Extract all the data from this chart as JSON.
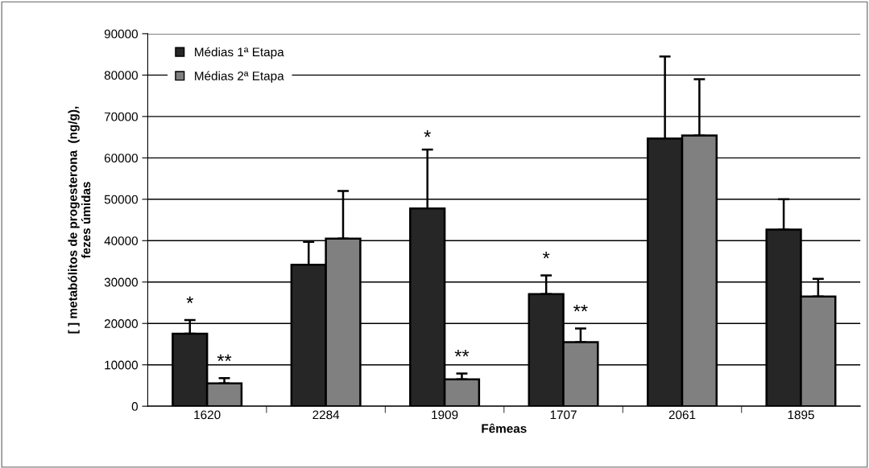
{
  "chart_data": {
    "type": "bar",
    "xlabel": "Fêmeas",
    "ylabel": "[ ] metabólitos de progesterona  (ng/g),\nfezes úmidas",
    "categories": [
      "1620",
      "2284",
      "1909",
      "1707",
      "2061",
      "1895"
    ],
    "series": [
      {
        "name": "Médias 1ª Etapa",
        "color": "#262626",
        "values": [
          17500,
          34200,
          47800,
          27100,
          64700,
          42700
        ],
        "errors": [
          [
            17500,
            20800
          ],
          [
            34200,
            39700
          ],
          [
            47800,
            62000
          ],
          [
            27100,
            31600
          ],
          [
            64700,
            84500
          ],
          [
            42700,
            50000
          ]
        ]
      },
      {
        "name": "Médias 2ª Etapa",
        "color": "#808080",
        "values": [
          5500,
          40500,
          6500,
          15500,
          65400,
          26500
        ],
        "errors": [
          [
            5500,
            6800
          ],
          [
            40500,
            52000
          ],
          [
            6500,
            7900
          ],
          [
            15500,
            18800
          ],
          [
            65400,
            79000
          ],
          [
            26500,
            30800
          ]
        ]
      }
    ],
    "annotations": [
      {
        "text": "*",
        "x": "1620",
        "y": 17500
      },
      {
        "text": "**",
        "x": "1620",
        "y": 5500
      },
      "*",
      {
        "text": "**",
        "x": "1909",
        "y": 6500
      },
      {
        "text": "*",
        "x": "1707",
        "y": 27100
      },
      {
        "text": "**",
        "x": "1707",
        "y": 15500
      }
    ],
    "ylim": [
      0,
      90000
    ],
    "yticks": [
      0,
      10000,
      20000,
      30000,
      40000,
      50000,
      60000,
      70000,
      80000,
      90000
    ],
    "grid": "y",
    "legend": "top left"
  }
}
